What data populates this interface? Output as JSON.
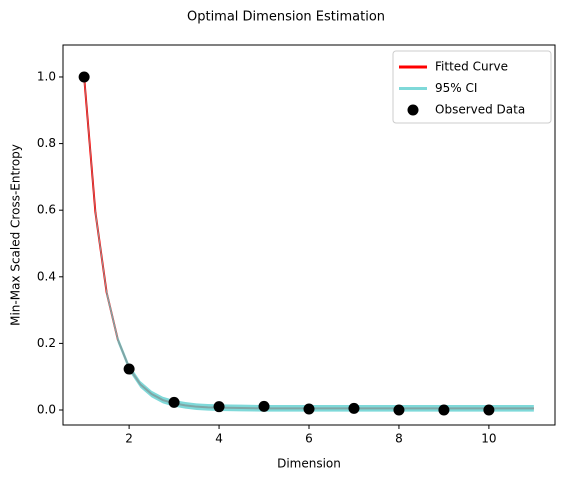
{
  "chart_data": {
    "type": "line",
    "title": "Optimal Dimension Estimation",
    "xlabel": "Dimension",
    "ylabel": "Min-Max Scaled Cross-Entropy",
    "xlim": [
      0.53,
      11.47
    ],
    "ylim": [
      -0.045,
      1.096
    ],
    "xticks": [
      2,
      4,
      6,
      8,
      10
    ],
    "yticks": [
      {
        "value": 0,
        "label": "0.0"
      },
      0.2,
      0.4,
      0.6,
      0.8,
      {
        "value": 1,
        "label": "1.0"
      }
    ],
    "legend": "upper right",
    "series": [
      {
        "name": "Fitted Curve",
        "color": "#ff0000",
        "x": [
          1,
          1.25,
          1.5,
          1.75,
          2,
          2.25,
          2.5,
          2.75,
          3,
          3.25,
          3.5,
          3.75,
          4,
          4.5,
          5,
          6,
          7,
          8,
          9,
          10,
          11
        ],
        "values": [
          1.0,
          0.594,
          0.353,
          0.211,
          0.127,
          0.077,
          0.048,
          0.03,
          0.02,
          0.014,
          0.01,
          0.008,
          0.007,
          0.006,
          0.005,
          0.005,
          0.005,
          0.005,
          0.005,
          0.005,
          0.005
        ]
      },
      {
        "name": "95% CI",
        "color": "#5fd0d0",
        "x": [
          1,
          1.25,
          1.5,
          1.75,
          2,
          2.25,
          2.5,
          2.75,
          3,
          3.25,
          3.5,
          3.75,
          4,
          4.5,
          5,
          6,
          7,
          8,
          9,
          10,
          11
        ],
        "lower": [
          0.99,
          0.584,
          0.343,
          0.201,
          0.117,
          0.067,
          0.038,
          0.02,
          0.01,
          0.004,
          0.0,
          -0.002,
          -0.003,
          -0.004,
          -0.005,
          -0.005,
          -0.005,
          -0.005,
          -0.005,
          -0.005,
          -0.005
        ],
        "upper": [
          1.01,
          0.604,
          0.363,
          0.221,
          0.137,
          0.087,
          0.058,
          0.04,
          0.03,
          0.024,
          0.02,
          0.018,
          0.017,
          0.016,
          0.015,
          0.015,
          0.015,
          0.015,
          0.015,
          0.015,
          0.015
        ]
      },
      {
        "name": "Observed Data",
        "color": "#000000",
        "x": [
          1,
          2,
          3,
          4,
          5,
          6,
          7,
          8,
          9,
          10
        ],
        "values": [
          1.0,
          0.123,
          0.023,
          0.01,
          0.011,
          0.003,
          0.005,
          0.0,
          0.0,
          0.0
        ]
      }
    ]
  }
}
